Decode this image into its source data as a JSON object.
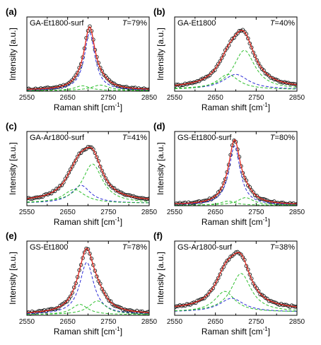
{
  "figure": {
    "panels": [
      {
        "letter": "(a)",
        "sample": "GA-Et1800-surf",
        "t_prefix": "T",
        "t_value": "=79%"
      },
      {
        "letter": "(b)",
        "sample": "GA-Et1800",
        "t_prefix": "T",
        "t_value": "=40%"
      },
      {
        "letter": "(c)",
        "sample": "GA-Ar1800-surf",
        "t_prefix": "T",
        "t_value": "=41%"
      },
      {
        "letter": "(d)",
        "sample": "GS-Et1800-surf",
        "t_prefix": "T",
        "t_value": "=80%"
      },
      {
        "letter": "(e)",
        "sample": "GS-Et1800",
        "t_prefix": "T",
        "t_value": "=78%"
      },
      {
        "letter": "(f)",
        "sample": "GS-Ar1800-surf",
        "t_prefix": "T",
        "t_value": "=38%"
      }
    ],
    "xlabel_main": "Raman shift [cm",
    "xlabel_sup": "-1",
    "xlabel_close": "]",
    "ylabel": "Intensity [a.u.]",
    "xticks": [
      "2550",
      "2650",
      "2750",
      "2850"
    ],
    "colors": {
      "data_points": "#1a1a1a",
      "fit_total": "#e0241b",
      "component_blue": "#2b2bd6",
      "component_green": "#2fbf2f",
      "axis": "#000000"
    }
  },
  "chart_data": [
    {
      "type": "line",
      "title": "GA-Et1800-surf",
      "annotation": "T=79%",
      "xlabel": "Raman shift [cm-1]",
      "ylabel": "Intensity [a.u.]",
      "xlim": [
        2550,
        2850
      ],
      "ylim": [
        0,
        1.08
      ],
      "x_ticks": [
        2550,
        2650,
        2750,
        2850
      ],
      "y_units": "arbitrary",
      "series": [
        {
          "name": "",
          "style": "open-circles",
          "role": "measured"
        },
        {
          "name": "",
          "style": "solid",
          "role": "fit"
        },
        {
          "name": "",
          "style": "dashed",
          "color": "blue",
          "peaks": [
            {
              "center": 2704,
              "hwhm": 16,
              "amplitude": 0.84
            }
          ]
        },
        {
          "name": "",
          "style": "dashed",
          "color": "green",
          "peaks": [
            {
              "center": 2730,
              "hwhm": 26,
              "amplitude": 0.08
            },
            {
              "center": 2686,
              "hwhm": 22,
              "amplitude": 0.07
            }
          ]
        }
      ],
      "baseline": 0.015
    },
    {
      "type": "line",
      "title": "GA-Et1800",
      "annotation": "T=40%",
      "xlabel": "Raman shift [cm-1]",
      "ylabel": "Intensity [a.u.]",
      "xlim": [
        2550,
        2850
      ],
      "ylim": [
        0,
        1.08
      ],
      "x_ticks": [
        2550,
        2650,
        2750,
        2850
      ],
      "y_units": "arbitrary",
      "series": [
        {
          "name": "",
          "style": "open-circles",
          "role": "measured"
        },
        {
          "name": "",
          "style": "solid",
          "role": "fit"
        },
        {
          "name": "",
          "style": "dashed",
          "color": "blue",
          "peaks": [
            {
              "center": 2700,
              "hwhm": 38,
              "amplitude": 0.22
            }
          ]
        },
        {
          "name": "",
          "style": "dashed",
          "color": "green",
          "peaks": [
            {
              "center": 2721,
              "hwhm": 32,
              "amplitude": 0.57
            },
            {
              "center": 2681,
              "hwhm": 32,
              "amplitude": 0.22
            }
          ]
        }
      ],
      "baseline": 0.04
    },
    {
      "type": "line",
      "title": "GA-Ar1800-surf",
      "annotation": "T=41%",
      "xlabel": "Raman shift [cm-1]",
      "ylabel": "Intensity [a.u.]",
      "xlim": [
        2550,
        2850
      ],
      "ylim": [
        0,
        1.08
      ],
      "x_ticks": [
        2550,
        2650,
        2750,
        2850
      ],
      "y_units": "arbitrary",
      "series": [
        {
          "name": "",
          "style": "open-circles",
          "role": "measured"
        },
        {
          "name": "",
          "style": "solid",
          "role": "fit"
        },
        {
          "name": "",
          "style": "dashed",
          "color": "blue",
          "peaks": [
            {
              "center": 2683,
              "hwhm": 28,
              "amplitude": 0.26
            }
          ]
        },
        {
          "name": "",
          "style": "dashed",
          "color": "green",
          "peaks": [
            {
              "center": 2711,
              "hwhm": 30,
              "amplitude": 0.57
            },
            {
              "center": 2666,
              "hwhm": 32,
              "amplitude": 0.2
            }
          ]
        }
      ],
      "baseline": 0.06
    },
    {
      "type": "line",
      "title": "GS-Et1800-surf",
      "annotation": "T=80%",
      "xlabel": "Raman shift [cm-1]",
      "ylabel": "Intensity [a.u.]",
      "xlim": [
        2550,
        2850
      ],
      "ylim": [
        0,
        1.08
      ],
      "x_ticks": [
        2550,
        2650,
        2750,
        2850
      ],
      "y_units": "arbitrary",
      "series": [
        {
          "name": "",
          "style": "open-circles",
          "role": "measured"
        },
        {
          "name": "",
          "style": "solid",
          "role": "fit"
        },
        {
          "name": "",
          "style": "dashed",
          "color": "blue",
          "peaks": [
            {
              "center": 2697,
              "hwhm": 17,
              "amplitude": 0.86
            }
          ]
        },
        {
          "name": "",
          "style": "dashed",
          "color": "green",
          "peaks": [
            {
              "center": 2724,
              "hwhm": 24,
              "amplitude": 0.11
            },
            {
              "center": 2681,
              "hwhm": 22,
              "amplitude": 0.06
            }
          ]
        }
      ],
      "baseline": 0.012
    },
    {
      "type": "line",
      "title": "GS-Et1800",
      "annotation": "T=78%",
      "xlabel": "Raman shift [cm-1]",
      "ylabel": "Intensity [a.u.]",
      "xlim": [
        2550,
        2850
      ],
      "ylim": [
        0,
        1.08
      ],
      "x_ticks": [
        2550,
        2650,
        2750,
        2850
      ],
      "y_units": "arbitrary",
      "series": [
        {
          "name": "",
          "style": "open-circles",
          "role": "measured"
        },
        {
          "name": "",
          "style": "solid",
          "role": "fit"
        },
        {
          "name": "",
          "style": "dashed",
          "color": "blue",
          "peaks": [
            {
              "center": 2697,
              "hwhm": 21,
              "amplitude": 0.76
            }
          ]
        },
        {
          "name": "",
          "style": "dashed",
          "color": "green",
          "peaks": [
            {
              "center": 2723,
              "hwhm": 26,
              "amplitude": 0.2
            },
            {
              "center": 2680,
              "hwhm": 24,
              "amplitude": 0.15
            }
          ]
        }
      ],
      "baseline": 0.015
    },
    {
      "type": "line",
      "title": "GS-Ar1800-surf",
      "annotation": "T=38%",
      "xlabel": "Raman shift [cm-1]",
      "ylabel": "Intensity [a.u.]",
      "xlim": [
        2550,
        2850
      ],
      "ylim": [
        0,
        1.08
      ],
      "x_ticks": [
        2550,
        2650,
        2750,
        2850
      ],
      "y_units": "arbitrary",
      "series": [
        {
          "name": "",
          "style": "open-circles",
          "role": "measured"
        },
        {
          "name": "",
          "style": "solid",
          "role": "fit"
        },
        {
          "name": "",
          "style": "dashed",
          "color": "blue",
          "peaks": [
            {
              "center": 2690,
              "hwhm": 36,
              "amplitude": 0.2
            }
          ]
        },
        {
          "name": "",
          "style": "dashed",
          "color": "green",
          "peaks": [
            {
              "center": 2713,
              "hwhm": 30,
              "amplitude": 0.56
            },
            {
              "center": 2673,
              "hwhm": 30,
              "amplitude": 0.3
            }
          ]
        }
      ],
      "baseline": 0.08
    }
  ]
}
